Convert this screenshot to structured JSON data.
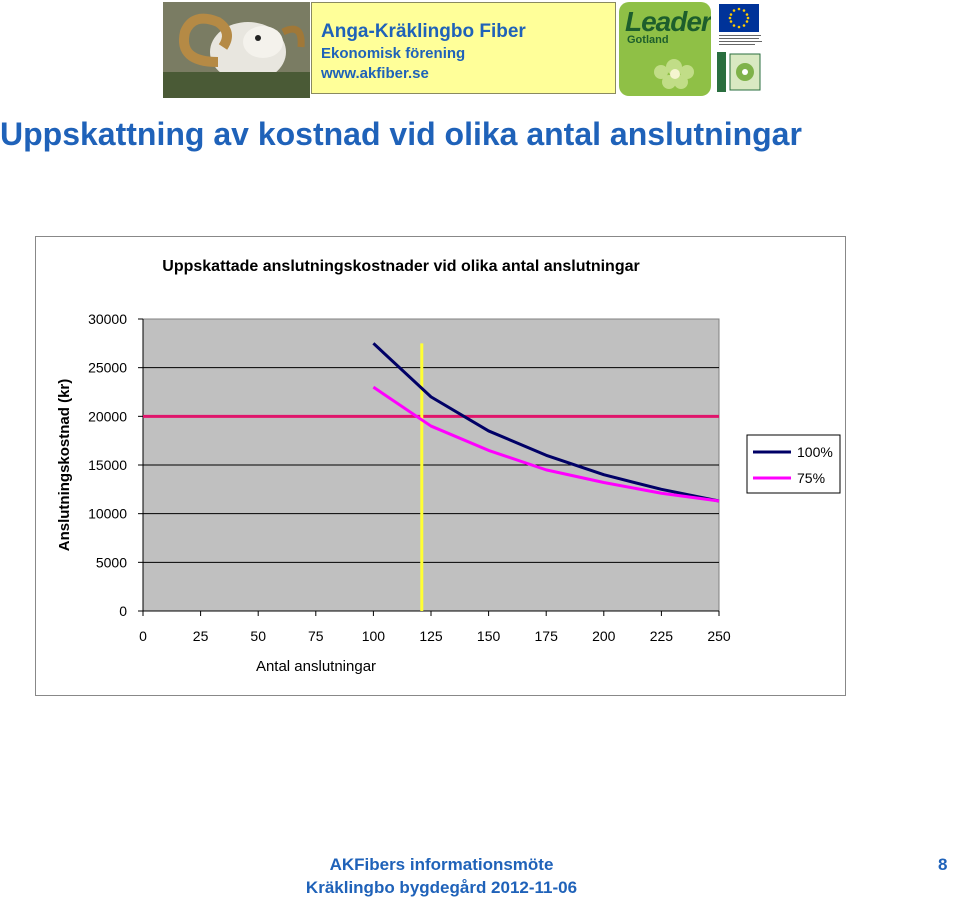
{
  "header": {
    "org_name": "Anga-Kräklingbo Fiber",
    "org_subtitle": "Ekonomisk förening",
    "org_url": "www.akfiber.se",
    "leader_logo_text": "Leader",
    "leader_logo_sub": "Gotland"
  },
  "slide_title": "Uppskattning av kostnad vid olika antal anslutningar",
  "chart_data": {
    "type": "line",
    "title": "Uppskattade anslutningskostnader vid olika antal anslutningar",
    "xlabel": "Antal anslutningar",
    "ylabel": "Anslutningskostnad (kr)",
    "xlim": [
      0,
      250
    ],
    "ylim": [
      0,
      30000
    ],
    "x_ticks": [
      0,
      25,
      50,
      75,
      100,
      125,
      150,
      175,
      200,
      225,
      250
    ],
    "y_ticks": [
      0,
      5000,
      10000,
      15000,
      20000,
      25000,
      30000
    ],
    "plot_background": "#c0c0c0",
    "grid": "horizontal",
    "legend_position": "right",
    "series": [
      {
        "name": "100%",
        "color": "#000066",
        "x": [
          100,
          125,
          150,
          175,
          200,
          225,
          250
        ],
        "y": [
          27500,
          22000,
          18500,
          16000,
          14000,
          12500,
          11300
        ]
      },
      {
        "name": "75%",
        "color": "#ff00ff",
        "x": [
          100,
          125,
          150,
          175,
          200,
          225,
          250
        ],
        "y": [
          23000,
          19000,
          16500,
          14500,
          13200,
          12100,
          11300
        ]
      }
    ],
    "reference_lines": [
      {
        "orientation": "horizontal",
        "value": 20000,
        "color": "#e0156b"
      },
      {
        "orientation": "vertical",
        "value": 121,
        "color": "#ffff33"
      }
    ]
  },
  "footer": {
    "event": "AKFibers informationsmöte",
    "place_date": "Kräklingbo bygdegård 2012-11-06",
    "page_number": "8"
  }
}
